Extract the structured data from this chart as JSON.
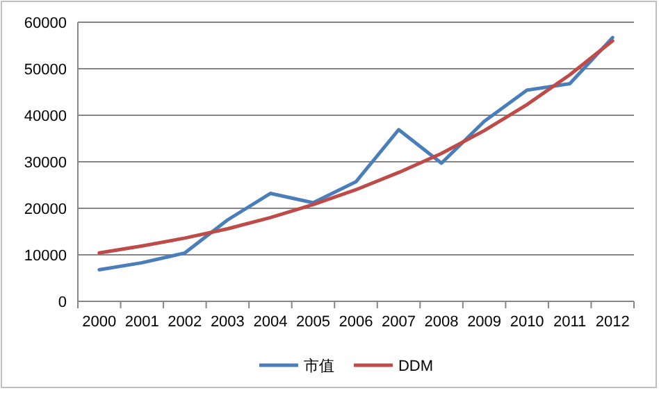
{
  "chart_data": {
    "type": "line",
    "categories": [
      "2000",
      "2001",
      "2002",
      "2003",
      "2004",
      "2005",
      "2006",
      "2007",
      "2008",
      "2009",
      "2010",
      "2011",
      "2012"
    ],
    "series": [
      {
        "name": "市值",
        "color": "#4a7ebb",
        "values": [
          6800,
          8300,
          10400,
          17500,
          23200,
          21200,
          25700,
          36900,
          29700,
          38700,
          45400,
          46800,
          56700
        ]
      },
      {
        "name": "DDM",
        "color": "#be4b48",
        "values": [
          10400,
          11900,
          13600,
          15600,
          18000,
          20800,
          24000,
          27700,
          31800,
          36700,
          42300,
          48700,
          56000
        ]
      }
    ],
    "ylim": [
      0,
      60000
    ],
    "yticks": [
      0,
      10000,
      20000,
      30000,
      40000,
      50000,
      60000
    ],
    "grid": "y",
    "legend": "bottom",
    "marker": "none",
    "line_style": "solid"
  }
}
